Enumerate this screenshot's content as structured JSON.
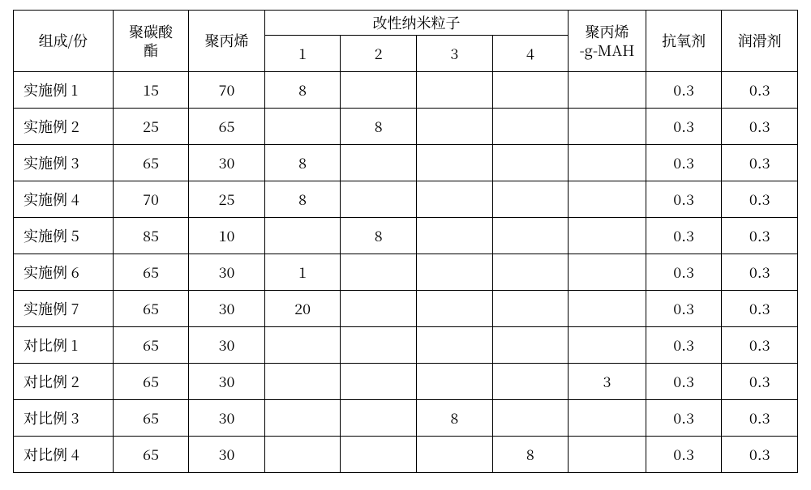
{
  "header": {
    "composition": "组成/份",
    "polycarbonate": "聚碳酸\n酯",
    "polypropylene": "聚丙烯",
    "modified_nano_group": "改性纳米粒子",
    "nano_cols": [
      "1",
      "2",
      "3",
      "4"
    ],
    "pp_g_mah": "聚丙烯\n-g-MAH",
    "antioxidant": "抗氧剂",
    "lubricant": "润滑剂"
  },
  "rows": [
    {
      "label": "实施例 1",
      "pc": "15",
      "pp": "70",
      "n1": "8",
      "n2": "",
      "n3": "",
      "n4": "",
      "mah": "",
      "ao": "0.3",
      "lub": "0.3"
    },
    {
      "label": "实施例 2",
      "pc": "25",
      "pp": "65",
      "n1": "",
      "n2": "8",
      "n3": "",
      "n4": "",
      "mah": "",
      "ao": "0.3",
      "lub": "0.3"
    },
    {
      "label": "实施例 3",
      "pc": "65",
      "pp": "30",
      "n1": "8",
      "n2": "",
      "n3": "",
      "n4": "",
      "mah": "",
      "ao": "0.3",
      "lub": "0.3"
    },
    {
      "label": "实施例 4",
      "pc": "70",
      "pp": "25",
      "n1": "8",
      "n2": "",
      "n3": "",
      "n4": "",
      "mah": "",
      "ao": "0.3",
      "lub": "0.3"
    },
    {
      "label": "实施例 5",
      "pc": "85",
      "pp": "10",
      "n1": "",
      "n2": "8",
      "n3": "",
      "n4": "",
      "mah": "",
      "ao": "0.3",
      "lub": "0.3"
    },
    {
      "label": "实施例 6",
      "pc": "65",
      "pp": "30",
      "n1": "1",
      "n2": "",
      "n3": "",
      "n4": "",
      "mah": "",
      "ao": "0.3",
      "lub": "0.3"
    },
    {
      "label": "实施例 7",
      "pc": "65",
      "pp": "30",
      "n1": "20",
      "n2": "",
      "n3": "",
      "n4": "",
      "mah": "",
      "ao": "0.3",
      "lub": "0.3"
    },
    {
      "label": "对比例 1",
      "pc": "65",
      "pp": "30",
      "n1": "",
      "n2": "",
      "n3": "",
      "n4": "",
      "mah": "",
      "ao": "0.3",
      "lub": "0.3"
    },
    {
      "label": "对比例 2",
      "pc": "65",
      "pp": "30",
      "n1": "",
      "n2": "",
      "n3": "",
      "n4": "",
      "mah": "3",
      "ao": "0.3",
      "lub": "0.3"
    },
    {
      "label": "对比例 3",
      "pc": "65",
      "pp": "30",
      "n1": "",
      "n2": "",
      "n3": "8",
      "n4": "",
      "mah": "",
      "ao": "0.3",
      "lub": "0.3"
    },
    {
      "label": "对比例 4",
      "pc": "65",
      "pp": "30",
      "n1": "",
      "n2": "",
      "n3": "",
      "n4": "8",
      "mah": "",
      "ao": "0.3",
      "lub": "0.3"
    }
  ],
  "col_widths_pct": [
    11.8,
    9.0,
    9.0,
    9.0,
    9.0,
    9.0,
    9.0,
    9.2,
    9.0,
    9.0
  ]
}
